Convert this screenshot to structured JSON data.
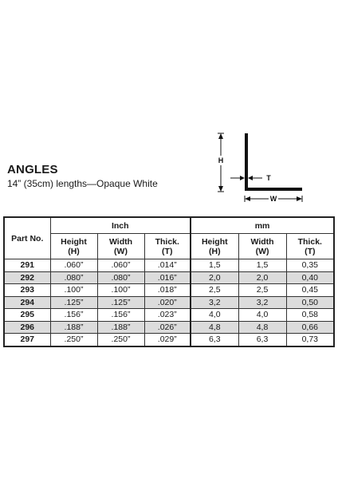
{
  "title": "ANGLES",
  "subtitle": "14” (35cm) lengths—Opaque White",
  "diagram": {
    "labels": {
      "height": "H",
      "thickness": "T",
      "width": "W"
    },
    "colors": {
      "profile": "#111111"
    }
  },
  "table": {
    "part_header": "Part No.",
    "groups": {
      "inch": "Inch",
      "mm": "mm"
    },
    "col_headers": {
      "height": "Height",
      "height_sub": "(H)",
      "width": "Width",
      "width_sub": "(W)",
      "thick": "Thick.",
      "thick_sub": "(T)"
    },
    "rows": [
      {
        "part": "291",
        "in_h": ".060”",
        "in_w": ".060”",
        "in_t": ".014”",
        "mm_h": "1,5",
        "mm_w": "1,5",
        "mm_t": "0,35"
      },
      {
        "part": "292",
        "in_h": ".080”",
        "in_w": ".080”",
        "in_t": ".016”",
        "mm_h": "2,0",
        "mm_w": "2,0",
        "mm_t": "0,40"
      },
      {
        "part": "293",
        "in_h": ".100”",
        "in_w": ".100”",
        "in_t": ".018”",
        "mm_h": "2,5",
        "mm_w": "2,5",
        "mm_t": "0,45"
      },
      {
        "part": "294",
        "in_h": ".125”",
        "in_w": ".125”",
        "in_t": ".020”",
        "mm_h": "3,2",
        "mm_w": "3,2",
        "mm_t": "0,50"
      },
      {
        "part": "295",
        "in_h": ".156”",
        "in_w": ".156”",
        "in_t": ".023”",
        "mm_h": "4,0",
        "mm_w": "4,0",
        "mm_t": "0,58"
      },
      {
        "part": "296",
        "in_h": ".188”",
        "in_w": ".188”",
        "in_t": ".026”",
        "mm_h": "4,8",
        "mm_w": "4,8",
        "mm_t": "0,66"
      },
      {
        "part": "297",
        "in_h": ".250”",
        "in_w": ".250”",
        "in_t": ".029”",
        "mm_h": "6,3",
        "mm_w": "6,3",
        "mm_t": "0,73"
      }
    ],
    "colors": {
      "row_shade": "#dcdcdc",
      "row_plain": "#ffffff",
      "rule": "#333333"
    }
  }
}
